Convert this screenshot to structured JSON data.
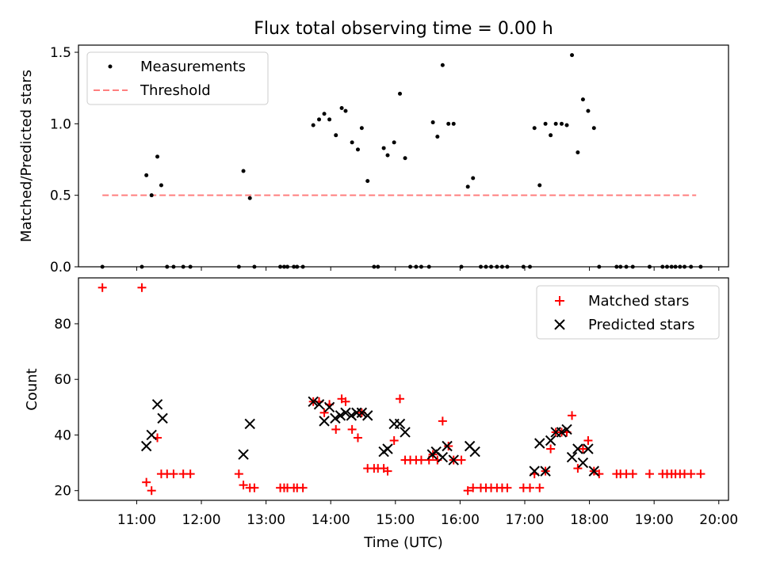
{
  "figure": {
    "title": "Flux total observing time = 0.00 h"
  },
  "chart_data": [
    {
      "type": "scatter",
      "ylabel": "Matched/Predicted stars",
      "xlim": [
        10.1,
        20.15
      ],
      "ylim": [
        0,
        1.55
      ],
      "yticks": [
        0.0,
        0.5,
        1.0,
        1.5
      ],
      "ytick_labels": [
        "0.0",
        "0.5",
        "1.0",
        "1.5"
      ],
      "grid": false,
      "legend_position": "upper-left",
      "legend": [
        "Measurements",
        "Threshold"
      ],
      "colors": {
        "measurements": "#000000",
        "threshold": "#ff7f7f"
      },
      "threshold": {
        "value": 0.5,
        "x_start": 10.47,
        "x_end": 19.65
      },
      "series": [
        {
          "name": "Measurements",
          "x": [
            10.47,
            11.08,
            11.15,
            11.23,
            11.32,
            11.38,
            11.47,
            11.57,
            11.72,
            11.83,
            12.58,
            12.65,
            12.75,
            12.82,
            13.22,
            13.28,
            13.33,
            13.43,
            13.48,
            13.57,
            13.73,
            13.82,
            13.9,
            13.98,
            14.08,
            14.17,
            14.23,
            14.33,
            14.42,
            14.48,
            14.57,
            14.67,
            14.73,
            14.82,
            14.88,
            14.98,
            15.07,
            15.15,
            15.23,
            15.32,
            15.4,
            15.52,
            15.58,
            15.65,
            15.73,
            15.82,
            15.9,
            16.02,
            16.12,
            16.2,
            16.32,
            16.4,
            16.48,
            16.57,
            16.65,
            16.73,
            16.98,
            17.08,
            17.15,
            17.23,
            17.32,
            17.4,
            17.48,
            17.57,
            17.65,
            17.73,
            17.82,
            17.9,
            17.98,
            18.07,
            18.15,
            18.42,
            18.48,
            18.57,
            18.67,
            18.93,
            19.13,
            19.2,
            19.27,
            19.33,
            19.4,
            19.47,
            19.57,
            19.72
          ],
          "y": [
            0.0,
            0.0,
            0.64,
            0.5,
            0.77,
            0.57,
            0.0,
            0.0,
            0.0,
            0.0,
            0.0,
            0.67,
            0.48,
            0.0,
            0.0,
            0.0,
            0.0,
            0.0,
            0.0,
            0.0,
            0.99,
            1.03,
            1.07,
            1.03,
            0.92,
            1.11,
            1.09,
            0.87,
            0.82,
            0.97,
            0.6,
            0.0,
            0.0,
            0.83,
            0.78,
            0.87,
            1.21,
            0.76,
            0.0,
            0.0,
            0.0,
            0.0,
            1.01,
            0.91,
            1.41,
            1.0,
            1.0,
            0.0,
            0.56,
            0.62,
            0.0,
            0.0,
            0.0,
            0.0,
            0.0,
            0.0,
            0.0,
            0.0,
            0.97,
            0.57,
            1.0,
            0.92,
            1.0,
            1.0,
            0.99,
            1.48,
            0.8,
            1.17,
            1.09,
            0.97,
            0.0,
            0.0,
            0.0,
            0.0,
            0.0,
            0.0,
            0.0,
            0.0,
            0.0,
            0.0,
            0.0,
            0.0,
            0.0,
            0.0
          ]
        }
      ]
    },
    {
      "type": "scatter",
      "xlabel": "Time (UTC)",
      "ylabel": "Count",
      "xlim": [
        10.1,
        20.15
      ],
      "ylim": [
        16.5,
        96.5
      ],
      "xticks": [
        11,
        12,
        13,
        14,
        15,
        16,
        17,
        18,
        19,
        20
      ],
      "xtick_labels": [
        "11:00",
        "12:00",
        "13:00",
        "14:00",
        "15:00",
        "16:00",
        "17:00",
        "18:00",
        "19:00",
        "20:00"
      ],
      "yticks": [
        20,
        40,
        60,
        80
      ],
      "ytick_labels": [
        "20",
        "40",
        "60",
        "80"
      ],
      "grid": false,
      "legend_position": "upper-right",
      "legend": [
        "Matched stars",
        "Predicted stars"
      ],
      "colors": {
        "matched": "#ff0000",
        "predicted": "#000000"
      },
      "series": [
        {
          "name": "Matched stars",
          "x": [
            10.47,
            11.08,
            11.15,
            11.23,
            11.32,
            11.38,
            11.47,
            11.57,
            11.72,
            11.83,
            12.58,
            12.65,
            12.75,
            12.82,
            13.22,
            13.28,
            13.33,
            13.43,
            13.48,
            13.57,
            13.73,
            13.82,
            13.9,
            13.98,
            14.08,
            14.17,
            14.23,
            14.33,
            14.42,
            14.48,
            14.57,
            14.67,
            14.73,
            14.82,
            14.88,
            14.98,
            15.07,
            15.15,
            15.23,
            15.32,
            15.4,
            15.52,
            15.58,
            15.65,
            15.73,
            15.82,
            15.9,
            16.02,
            16.12,
            16.2,
            16.32,
            16.4,
            16.48,
            16.57,
            16.65,
            16.73,
            16.98,
            17.08,
            17.15,
            17.23,
            17.32,
            17.4,
            17.48,
            17.57,
            17.65,
            17.73,
            17.82,
            17.9,
            17.98,
            18.07,
            18.15,
            18.42,
            18.48,
            18.57,
            18.67,
            18.93,
            19.13,
            19.2,
            19.27,
            19.33,
            19.4,
            19.47,
            19.57,
            19.72
          ],
          "y": [
            93,
            93,
            23,
            20,
            39,
            26,
            26,
            26,
            26,
            26,
            26,
            22,
            21,
            21,
            21,
            21,
            21,
            21,
            21,
            21,
            52,
            52,
            48,
            51,
            42,
            53,
            52,
            42,
            39,
            48,
            28,
            28,
            28,
            28,
            27,
            38,
            53,
            31,
            31,
            31,
            31,
            31,
            33,
            31,
            45,
            36,
            31,
            31,
            20,
            21,
            21,
            21,
            21,
            21,
            21,
            21,
            21,
            21,
            26,
            21,
            27,
            35,
            41,
            41,
            41,
            47,
            28,
            35,
            38,
            27,
            26,
            26,
            26,
            26,
            26,
            26,
            26,
            26,
            26,
            26,
            26,
            26,
            26,
            26
          ]
        },
        {
          "name": "Predicted stars",
          "x": [
            11.15,
            11.23,
            11.32,
            11.4,
            12.65,
            12.75,
            13.73,
            13.82,
            13.9,
            13.98,
            14.07,
            14.15,
            14.23,
            14.32,
            14.4,
            14.48,
            14.57,
            14.82,
            14.88,
            14.98,
            15.07,
            15.15,
            15.57,
            15.63,
            15.73,
            15.8,
            15.9,
            16.15,
            16.23,
            17.15,
            17.23,
            17.32,
            17.4,
            17.48,
            17.57,
            17.65,
            17.73,
            17.82,
            17.9,
            17.98,
            18.07
          ],
          "y": [
            36,
            40,
            51,
            46,
            33,
            44,
            52,
            51,
            45,
            50,
            46,
            47,
            48,
            47,
            48,
            48,
            47,
            34,
            35,
            44,
            44,
            41,
            33,
            34,
            32,
            36,
            31,
            36,
            34,
            27,
            37,
            27,
            38,
            41,
            41,
            42,
            32,
            35,
            30,
            35,
            27
          ]
        }
      ]
    }
  ]
}
